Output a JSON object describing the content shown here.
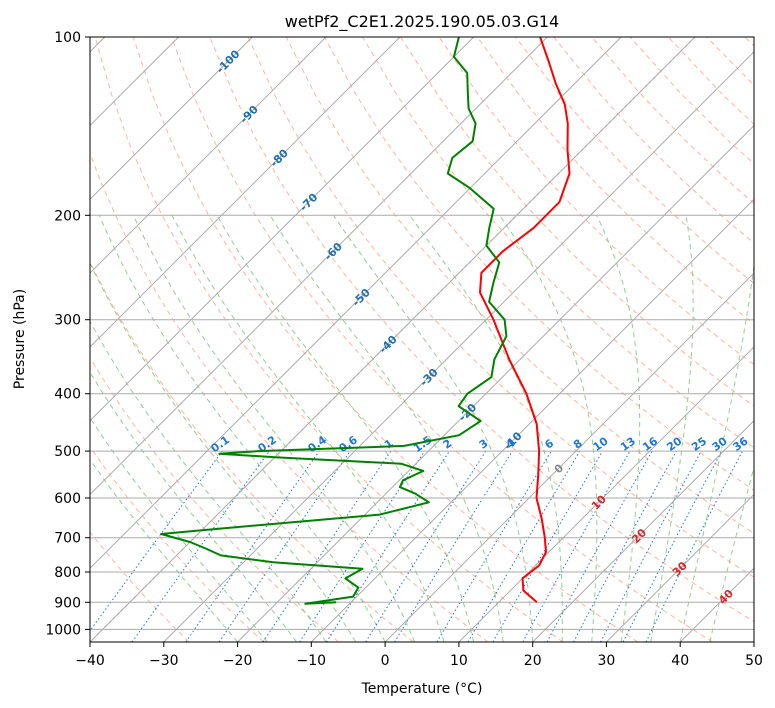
{
  "chart_data": {
    "type": "line",
    "title": "wetPf2_C2E1.2025.190.05.03.G14",
    "xlabel": "Temperature (°C)",
    "ylabel": "Pressure (hPa)",
    "xlim": [
      -40,
      50
    ],
    "ylim": [
      1050,
      100
    ],
    "y_scale": "log",
    "grid": true,
    "x_ticks": [
      -40,
      -30,
      -20,
      -10,
      0,
      10,
      20,
      30,
      40,
      50
    ],
    "y_ticks": [
      100,
      200,
      300,
      400,
      500,
      600,
      700,
      800,
      900,
      1000
    ],
    "skew": 45,
    "series": [
      {
        "color": "#ff0000",
        "points": [
          {
            "p": 900,
            "t": 15.2
          },
          {
            "p": 860,
            "t": 11.8
          },
          {
            "p": 820,
            "t": 10.0
          },
          {
            "p": 780,
            "t": 10.5
          },
          {
            "p": 740,
            "t": 9.6
          },
          {
            "p": 700,
            "t": 7.5
          },
          {
            "p": 650,
            "t": 4.5
          },
          {
            "p": 600,
            "t": 1.0
          },
          {
            "p": 550,
            "t": -1.8
          },
          {
            "p": 500,
            "t": -5.0
          },
          {
            "p": 450,
            "t": -9.0
          },
          {
            "p": 400,
            "t": -14.5
          },
          {
            "p": 350,
            "t": -21.5
          },
          {
            "p": 300,
            "t": -29.0
          },
          {
            "p": 270,
            "t": -34.5
          },
          {
            "p": 250,
            "t": -37.0
          },
          {
            "p": 230,
            "t": -37.0
          },
          {
            "p": 210,
            "t": -36.0
          },
          {
            "p": 190,
            "t": -36.0
          },
          {
            "p": 170,
            "t": -38.5
          },
          {
            "p": 155,
            "t": -42.0
          },
          {
            "p": 140,
            "t": -45.5
          },
          {
            "p": 130,
            "t": -48.5
          },
          {
            "p": 120,
            "t": -52.5
          },
          {
            "p": 110,
            "t": -56.5
          },
          {
            "p": 100,
            "t": -61.0
          }
        ]
      },
      {
        "color": "#008000",
        "points": [
          {
            "p": 900,
            "t": -12.0
          },
          {
            "p": 905,
            "t": -16.0
          },
          {
            "p": 880,
            "t": -10.5
          },
          {
            "p": 850,
            "t": -11.0
          },
          {
            "p": 820,
            "t": -14.0
          },
          {
            "p": 790,
            "t": -13.0
          },
          {
            "p": 770,
            "t": -26.0
          },
          {
            "p": 750,
            "t": -34.0
          },
          {
            "p": 730,
            "t": -37.0
          },
          {
            "p": 712,
            "t": -40.0
          },
          {
            "p": 690,
            "t": -45.0
          },
          {
            "p": 680,
            "t": -40.0
          },
          {
            "p": 640,
            "t": -18.0
          },
          {
            "p": 610,
            "t": -13.0
          },
          {
            "p": 590,
            "t": -16.0
          },
          {
            "p": 575,
            "t": -19.0
          },
          {
            "p": 560,
            "t": -19.5
          },
          {
            "p": 540,
            "t": -18.0
          },
          {
            "p": 525,
            "t": -22.0
          },
          {
            "p": 512,
            "t": -40.0
          },
          {
            "p": 505,
            "t": -48.0
          },
          {
            "p": 500,
            "t": -43.0
          },
          {
            "p": 490,
            "t": -24.0
          },
          {
            "p": 470,
            "t": -18.0
          },
          {
            "p": 445,
            "t": -17.0
          },
          {
            "p": 420,
            "t": -22.0
          },
          {
            "p": 400,
            "t": -22.5
          },
          {
            "p": 375,
            "t": -21.5
          },
          {
            "p": 350,
            "t": -23.5
          },
          {
            "p": 320,
            "t": -25.0
          },
          {
            "p": 300,
            "t": -27.5
          },
          {
            "p": 280,
            "t": -32.0
          },
          {
            "p": 260,
            "t": -34.0
          },
          {
            "p": 240,
            "t": -36.0
          },
          {
            "p": 225,
            "t": -40.0
          },
          {
            "p": 210,
            "t": -42.0
          },
          {
            "p": 195,
            "t": -44.0
          },
          {
            "p": 180,
            "t": -50.0
          },
          {
            "p": 170,
            "t": -55.0
          },
          {
            "p": 160,
            "t": -56.5
          },
          {
            "p": 150,
            "t": -56.0
          },
          {
            "p": 140,
            "t": -58.0
          },
          {
            "p": 132,
            "t": -61.0
          },
          {
            "p": 125,
            "t": -63.0
          },
          {
            "p": 115,
            "t": -66.0
          },
          {
            "p": 108,
            "t": -70.0
          },
          {
            "p": 100,
            "t": -72.0
          }
        ]
      }
    ],
    "isotherm_labels": [
      "-100",
      "-90",
      "-80",
      "-70",
      "-60",
      "-50",
      "-40",
      "-30",
      "-20",
      "-10",
      "0",
      "10",
      "20",
      "30",
      "40"
    ],
    "isotherm_label_values": [
      -100,
      -90,
      -80,
      -70,
      -60,
      -50,
      -40,
      -30,
      -20,
      -10,
      0,
      10,
      20,
      30,
      40
    ],
    "mixing_ratio_labels": [
      "0.1",
      "0.2",
      "0.4",
      "0.6",
      "1",
      "1.5",
      "2",
      "3",
      "4",
      "6",
      "8",
      "10",
      "13",
      "16",
      "20",
      "25",
      "30",
      "36"
    ],
    "mixing_ratio_values": [
      0.1,
      0.2,
      0.4,
      0.6,
      1,
      1.5,
      2,
      3,
      4,
      6,
      8,
      10,
      13,
      16,
      20,
      25,
      30,
      36
    ],
    "colors": {
      "temperature": "#ff0000",
      "dewpoint": "#008000",
      "isotherm": "#aaaaaa",
      "isobar": "#aaaaaa",
      "dry_adiabat": "#ffb49b",
      "moist_adiabat": "#8fd08f",
      "mixing_ratio": "#1f77d4",
      "isotherm_label_cold": "#1f6fb0",
      "isotherm_label_warm": "#d62728",
      "isotherm_label_zero": "#888888"
    }
  }
}
